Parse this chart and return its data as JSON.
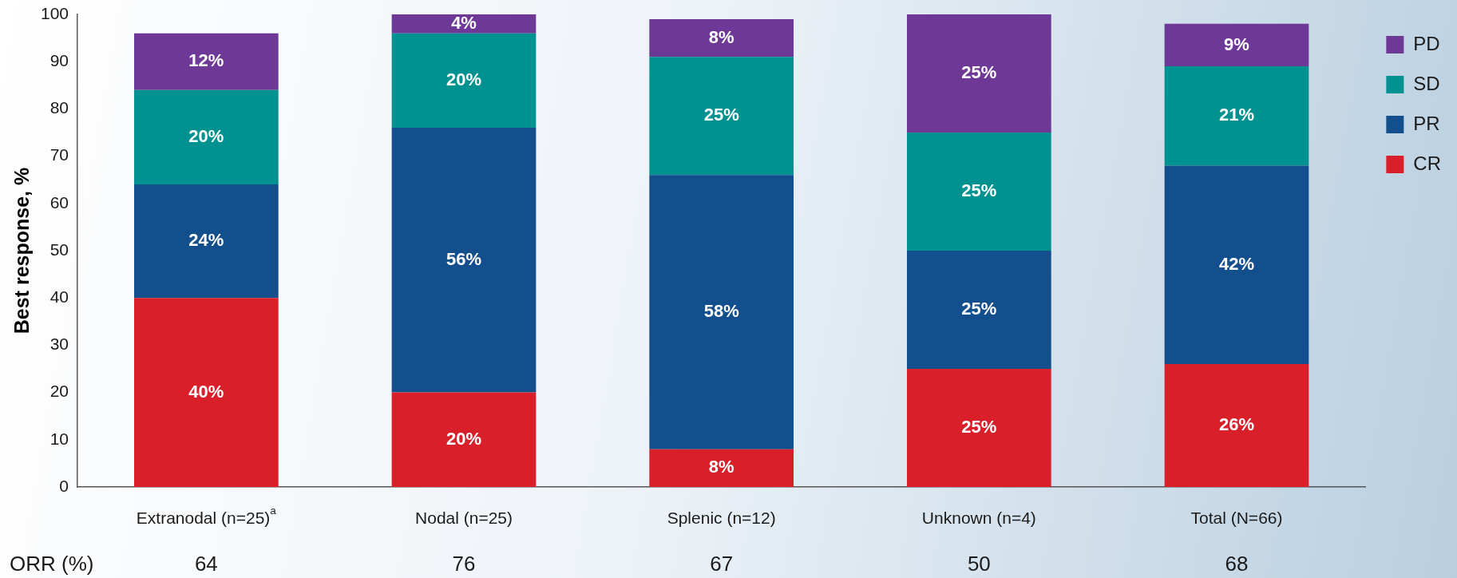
{
  "chart_data": {
    "type": "bar",
    "stacked": true,
    "ylabel": "Best response, %",
    "categories": [
      "Extranodal (n=25)$^{a}$",
      "Nodal (n=25)",
      "Splenic (n=12)",
      "Unknown (n=4)",
      "Total (N=66)"
    ],
    "series": [
      {
        "name": "CR",
        "color": "#d9202a",
        "values": [
          40,
          20,
          8,
          25,
          26
        ],
        "value_labels": [
          "40%",
          "20%",
          "8%",
          "25%",
          "26%"
        ]
      },
      {
        "name": "PR",
        "color": "#134f8c",
        "values": [
          24,
          56,
          58,
          25,
          42
        ],
        "value_labels": [
          "24%",
          "56%",
          "58%",
          "25%",
          "42%"
        ]
      },
      {
        "name": "SD",
        "color": "#009191",
        "values": [
          20,
          20,
          25,
          25,
          21
        ],
        "value_labels": [
          "20%",
          "20%",
          "25%",
          "25%",
          "21%"
        ]
      },
      {
        "name": "PD",
        "color": "#6e3996",
        "values": [
          12,
          4,
          8,
          25,
          9
        ],
        "value_labels": [
          "12%",
          "4%",
          "8%",
          "25%",
          "9%"
        ]
      }
    ],
    "ylim": [
      0,
      100
    ],
    "yticks": [
      0,
      10,
      20,
      30,
      40,
      50,
      60,
      70,
      80,
      90,
      100
    ],
    "grid": false,
    "legend": "right",
    "annotations": [
      "ORR (%)",
      "64",
      "76",
      "67",
      "50",
      "68"
    ]
  }
}
